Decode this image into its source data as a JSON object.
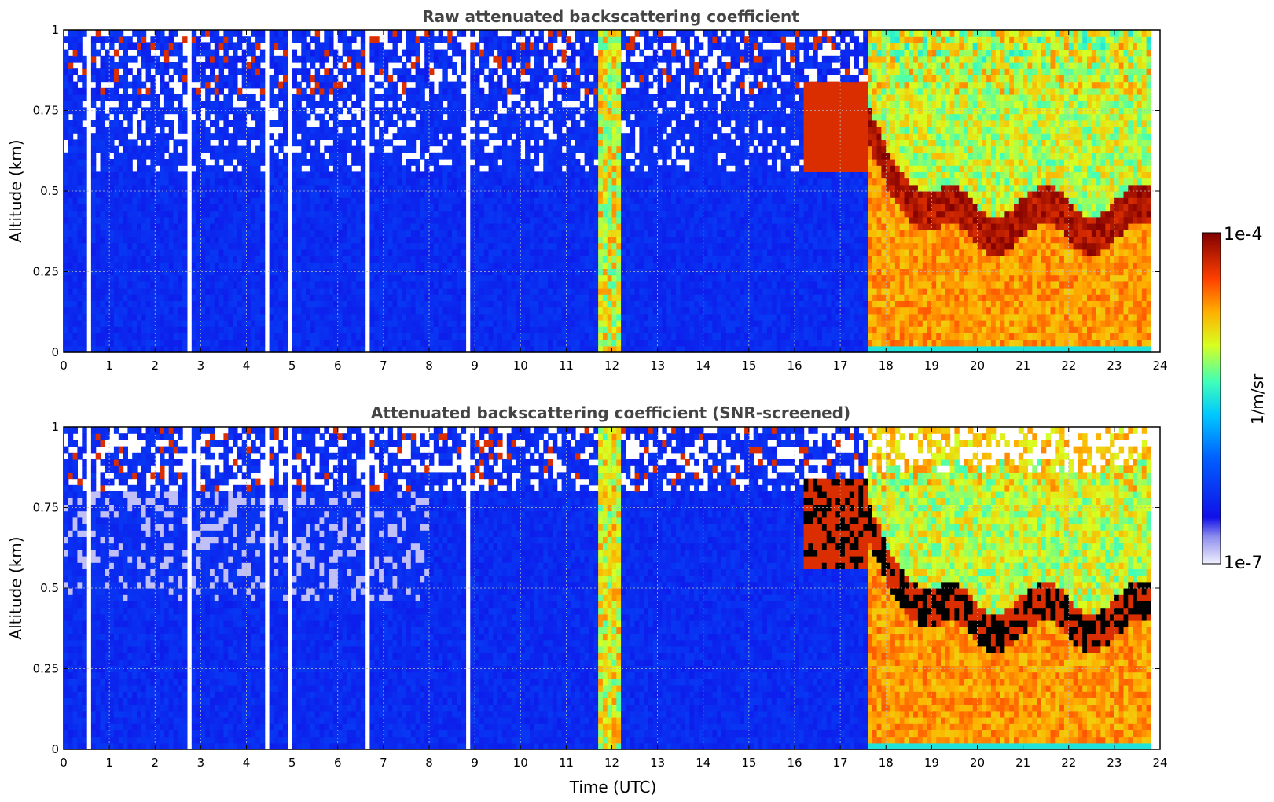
{
  "chart_data": [
    {
      "type": "heatmap",
      "title": "Raw attenuated backscattering coefficient",
      "xlabel": "",
      "ylabel": "Altitude (km)",
      "xlim": [
        0,
        24
      ],
      "ylim": [
        0,
        1
      ],
      "x_ticks": [
        "0",
        "1",
        "2",
        "3",
        "4",
        "5",
        "6",
        "7",
        "8",
        "9",
        "10",
        "11",
        "12",
        "13",
        "14",
        "15",
        "16",
        "17",
        "18",
        "19",
        "20",
        "21",
        "22",
        "23",
        "24"
      ],
      "y_ticks": [
        "0",
        "0.25",
        "0.5",
        "0.75",
        "1"
      ],
      "grid": true,
      "screened": false
    },
    {
      "type": "heatmap",
      "title": "Attenuated backscattering coefficient (SNR-screened)",
      "xlabel": "Time (UTC)",
      "ylabel": "Altitude (km)",
      "xlim": [
        0,
        24
      ],
      "ylim": [
        0,
        1
      ],
      "x_ticks": [
        "0",
        "1",
        "2",
        "3",
        "4",
        "5",
        "6",
        "7",
        "8",
        "9",
        "10",
        "11",
        "12",
        "13",
        "14",
        "15",
        "16",
        "17",
        "18",
        "19",
        "20",
        "21",
        "22",
        "23",
        "24"
      ],
      "y_ticks": [
        "0",
        "0.25",
        "0.5",
        "0.75",
        "1"
      ],
      "grid": true,
      "screened": true
    }
  ],
  "colorbar": {
    "label": "1/m/sr",
    "max_label": "1e-4",
    "min_label": "1e-7",
    "scale": "log",
    "range": [
      1e-07,
      0.0001
    ]
  }
}
